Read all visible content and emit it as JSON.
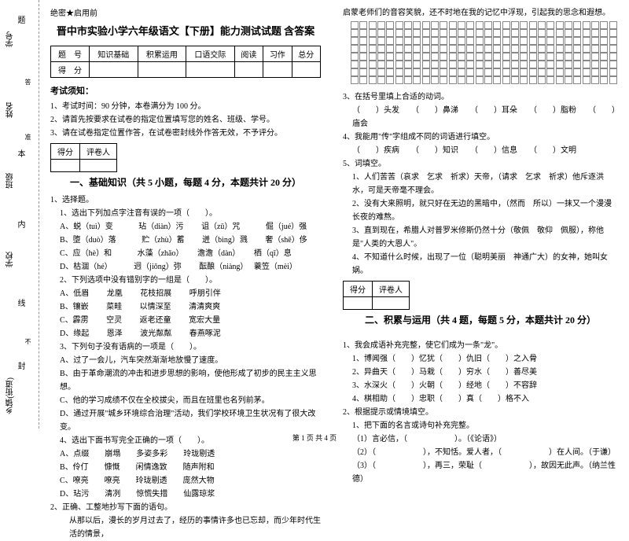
{
  "margin": {
    "labels": [
      "学号",
      "姓名",
      "班级",
      "学校",
      "乡镇(街道)"
    ],
    "side": [
      "题",
      "本",
      "内",
      "线",
      "封"
    ],
    "small": [
      "答",
      "准",
      "不"
    ]
  },
  "header": {
    "secret": "绝密★启用前"
  },
  "title": "晋中市实验小学六年级语文【下册】能力测试试题 含答案",
  "score_table": {
    "row1": [
      "题　号",
      "知识基础",
      "积累运用",
      "口语交际",
      "阅读",
      "习作",
      "总分"
    ],
    "row2": [
      "得　分",
      "",
      "",
      "",
      "",
      "",
      ""
    ]
  },
  "notice": {
    "head": "考试须知：",
    "items": [
      "1、考试时间：90 分钟，本卷满分为 100 分。",
      "2、请首先按要求在试卷的指定位置填写您的姓名、班级、学号。",
      "3、请在试卷指定位置作答，在试卷密封线外作答无效，不予评分。"
    ]
  },
  "eval_box": {
    "c1": "得分",
    "c2": "评卷人"
  },
  "sec1": {
    "title": "一、基础知识（共 5 小题，每题 4 分，本题共计 20 分）",
    "q1": "1、选择题。",
    "q1a": "1、选出下列加点字注音有误的一项（　　）。",
    "q1a_opts": [
      "A、蜕（tuì）变　　　 玷（diàn）污　　 诅（zǔ）咒　　　 倔（jué）强",
      "B、堕（duò）落　　　 贮（zhù）蓄　　 迸（bìng）溅　　 奢（shē）侈",
      "C、应（hè）和　　　 水藻（zhǎo）　　 澹澹（dàn）　　 栖（qī）息",
      "D、枯涸（hé）　　　 迥（jiǒng）弥　　 酝酿（niàng）　 蓑笠（mèi）"
    ],
    "q1b": "2、下列选项中没有错别字的一组是（　　）。",
    "q1b_opts": [
      "A、低眉　　 龙凰　　 花枝招展　　 呼朋引伴",
      "B、镶嵌　　 菜畦　　 以情深至　　 清清爽爽",
      "C、霹雳　　 空灵　　 返老还童　　 宽宏大量",
      "D、缘起　　 恩泽　　 波光粼粼　　 春燕啄泥"
    ],
    "q1c": "3、下列句子没有语病的一项是（　　）。",
    "q1c_opts": [
      "A、过了一会儿，汽车突然渐渐地放慢了速度。",
      "B、由于革命潮流的冲击和进步思想的影响，使他形成了初步的民主主义思想。",
      "C、他的学习成绩不仅在全校拔尖，而且在班里也名列前茅。",
      "D、通过开展\"城乡环境综合治理\"活动，我们学校环境卫生状况有了很大改变。"
    ],
    "q1d": "4、选出下面书写完全正确的一项（　　）。",
    "q1d_opts": [
      "A、点缀　　崩塌　　多姿多彩　　玲珑剔透",
      "B、伶仃　　慷慨　　闲情逸致　　随声附和",
      "C、嘹亮　　嘹亮　　玲珑剔透　　庞然大物",
      "D、玷污　　清冽　　惊慌失措　　仙露琼浆"
    ],
    "q2": "2、正确、工整地抄写下面的语句。",
    "q2_text": "从那以后，漫长的岁月过去了，经历的事情许多也已忘却，而少年时代生活的情景，"
  },
  "right_top": "启蒙老师们的音容笑貌，还不时地在我的记忆中浮现，引起我的思念和遐想。",
  "q3": {
    "stem": "3、在括号里填上合适的动词。",
    "l1": "（　　）头发　　（　　）鼻涕　　（　　）耳朵　　（　　）脂粉　　（　　）庙会",
    "q4": "4、我能用\"传\"字组成不同的词语进行填空。",
    "l2": "（　　）疾病　　（　　）知识　　（　　）信息　　（　　）文明"
  },
  "q5": {
    "stem": "5、词填空。",
    "l1": "1、人们苦苦（哀求　乞求　祈求）天帝，（请求　乞求　祈求）他斥逐洪水，可是天帝毫不理会。",
    "l2": "2、没有大来照明，就只好在无边的黑暗中，（然而　所以）一抹又一个漫漫长夜的难熬。",
    "l3": "3、直到现在，希腊人对普罗米修斯仍然十分（敬佩　敬仰　佩服），称他是\"人类的大恩人\"。",
    "l4": "4、不知道什么时候，出现了一位（聪明美丽　神通广大）的女神，她叫女娲。"
  },
  "sec2": {
    "title": "二、积累与运用（共 4 题，每题 5 分，本题共计 20 分）",
    "q1": "1、我会成语补充完整，使它们成为一条\"龙\"。",
    "l": [
      "1、博闻强（　　）忆犹（　　）仇旧（　　）之入骨",
      "2、异曲天（　　）马栽（　　）穷水（　　）善尽美",
      "3、水深火（　　）火朝（　　）经地（　　）不容辞",
      "4、棋相助（　　）忠职（　　）真（　　）格不入"
    ],
    "q2": "2、根据提示或情境填空。",
    "q2a": "1、把下面的名言或诗句补充完整。",
    "q2a_l": [
      "（1）言必信，（　　　　　　）。（《论语》）",
      "（2）（　　　　　　），不知恬。爱人者，（　　　　　　）在人间。（于谦）",
      "（3）（　　　　　　），再三，荣耻（　　　　　　），故因无此声。（纳兰性德）"
    ]
  },
  "footer": "第 1 页 共 4 页"
}
